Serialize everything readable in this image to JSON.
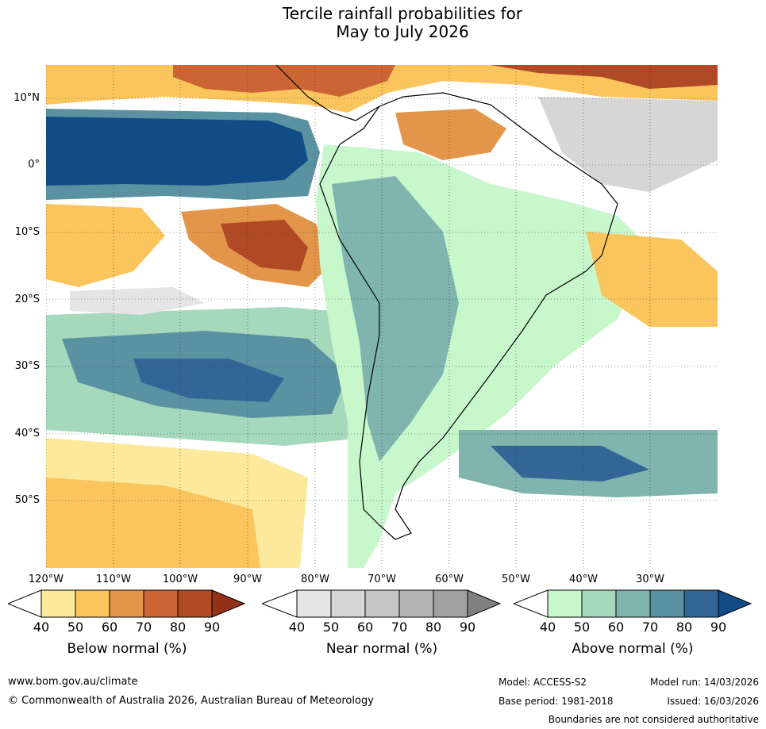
{
  "title": {
    "line1": "Tercile rainfall probabilities for",
    "line2": "May to July 2026"
  },
  "map": {
    "lat_labels": [
      "10°N",
      "0°",
      "10°S",
      "20°S",
      "30°S",
      "40°S",
      "50°S"
    ],
    "lon_labels": [
      "120°W",
      "110°W",
      "100°W",
      "90°W",
      "80°W",
      "70°W",
      "60°W",
      "50°W",
      "40°W",
      "30°W"
    ],
    "colors": {
      "ocean_base": "#ffffff",
      "below": [
        "#fde99b",
        "#fbc55e",
        "#e3954a",
        "#cc6535",
        "#b04a26",
        "#923018"
      ],
      "near": [
        "#e5e5e5",
        "#d6d6d6",
        "#c6c6c6",
        "#b4b4b4",
        "#a0a0a0",
        "#808080"
      ],
      "above": [
        "#c8f7cc",
        "#a6d8bc",
        "#7fb5ae",
        "#5a92a2",
        "#336697",
        "#124c86"
      ]
    }
  },
  "colorbars": [
    {
      "label": "Below normal (%)",
      "ticks": [
        "40",
        "50",
        "60",
        "70",
        "80",
        "90"
      ],
      "colors": [
        "#ffffff",
        "#fde99b",
        "#fbc55e",
        "#e3954a",
        "#cc6535",
        "#b04a26",
        "#923018"
      ]
    },
    {
      "label": "Near normal (%)",
      "ticks": [
        "40",
        "50",
        "60",
        "70",
        "80",
        "90"
      ],
      "colors": [
        "#ffffff",
        "#e5e5e5",
        "#d6d6d6",
        "#c6c6c6",
        "#b4b4b4",
        "#a0a0a0",
        "#808080"
      ]
    },
    {
      "label": "Above normal (%)",
      "ticks": [
        "40",
        "50",
        "60",
        "70",
        "80",
        "90"
      ],
      "colors": [
        "#ffffff",
        "#c8f7cc",
        "#a6d8bc",
        "#7fb5ae",
        "#5a92a2",
        "#336697",
        "#124c86"
      ]
    }
  ],
  "footer": {
    "website": "www.bom.gov.au/climate",
    "copyright": "© Commonwealth of Australia 2026, Australian Bureau of Meteorology",
    "model": "Model: ACCESS-S2",
    "base_period": "Base period: 1981-2018",
    "model_run": "Model run: 14/03/2026",
    "issued": "Issued: 16/03/2026",
    "disclaimer": "Boundaries are not considered authoritative"
  }
}
